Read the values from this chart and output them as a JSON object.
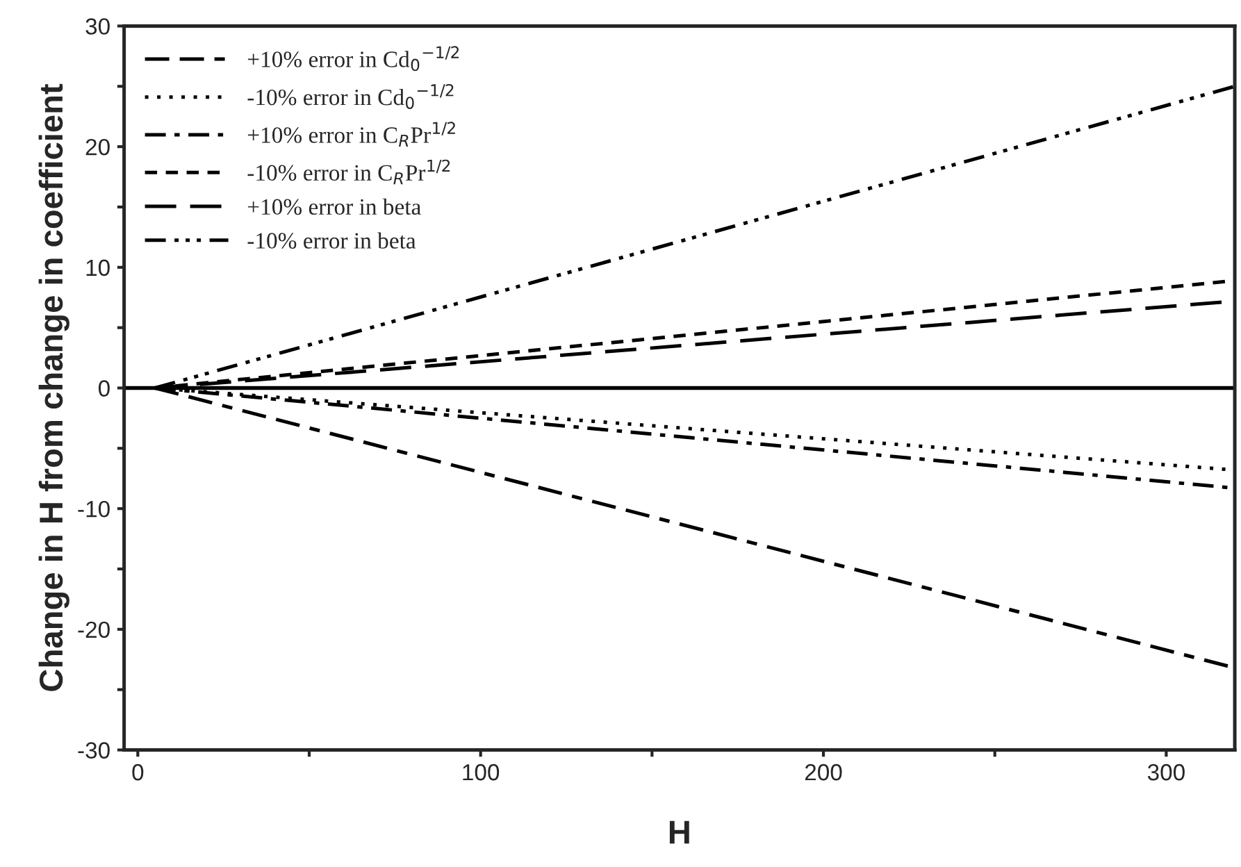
{
  "chart_data": {
    "type": "line",
    "xlabel": "H",
    "ylabel": "Change in H from change in coefficient",
    "x": [
      5,
      320
    ],
    "xlim": [
      -4,
      320
    ],
    "ylim": [
      -30,
      30
    ],
    "xticks": [
      0,
      {
        "value": 50,
        "label": null
      },
      100,
      {
        "value": 150,
        "label": null
      },
      200,
      {
        "value": 250,
        "label": null
      },
      300
    ],
    "yticks": [
      -30,
      {
        "value": -25,
        "label": null
      },
      -20,
      {
        "value": -15,
        "label": null
      },
      -10,
      {
        "value": -5,
        "label": null
      },
      0,
      {
        "value": 5,
        "label": null
      },
      10,
      {
        "value": 15,
        "label": null
      },
      20,
      {
        "value": 25,
        "label": null
      },
      30
    ],
    "legend": "top left",
    "grid": false,
    "ref_lines": [
      {
        "axis": "y",
        "value": 0,
        "color": "#000000",
        "line_style": "solid"
      }
    ],
    "series": [
      {
        "name": "+10% error in Cd$_{0}$$^{−1/2}$",
        "color": "#000000",
        "line_style": "dashed",
        "values": [
          0,
          -23.2
        ]
      },
      {
        "name": "-10% error in Cd$_{0}$$^{−1/2}$",
        "color": "#000000",
        "line_style": "dotted",
        "values": [
          0,
          -6.8
        ]
      },
      {
        "name": "+10% error in C$_{R}$Pr$^{1/2}$",
        "color": "#000000",
        "line_style": "dashdot",
        "values": [
          0,
          -8.3
        ]
      },
      {
        "name": "-10% error in C$_{R}$Pr$^{1/2}$",
        "color": "#000000",
        "line_style": "shortdash",
        "values": [
          0,
          8.9
        ]
      },
      {
        "name": "+10% error in beta",
        "color": "#000000",
        "line_style": "longdash",
        "values": [
          0,
          7.2
        ]
      },
      {
        "name": "-10% error in beta",
        "color": "#000000",
        "line_style": "dashdotdot",
        "values": [
          0,
          25.0
        ]
      }
    ]
  }
}
